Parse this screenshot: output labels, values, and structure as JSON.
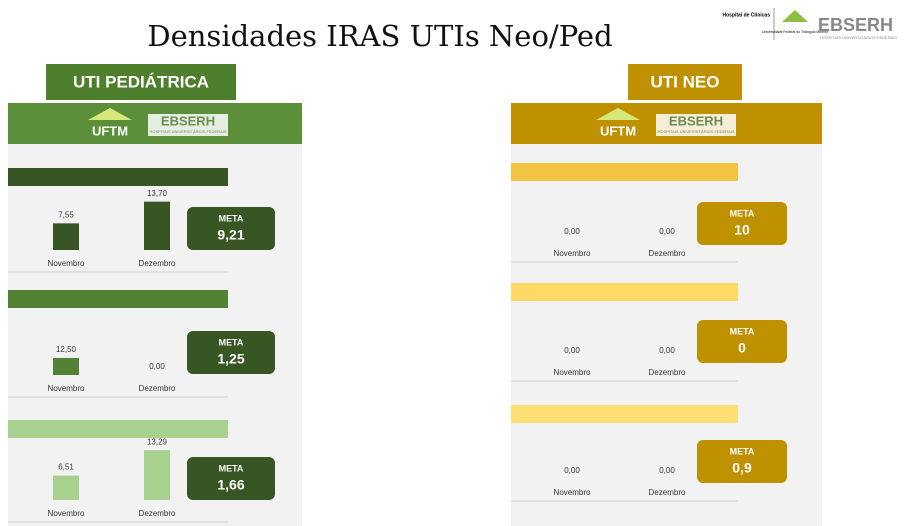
{
  "title": "Densidades IRAS UTIs Neo/Ped",
  "header_logo": {
    "hospital": "Hospital de Clínicas",
    "university": "Universidade Federal do Triângulo Mineiro",
    "brand": "EBSERH",
    "brand_sub": "HOSPITAIS UNIVERSITÁRIOS FEDERAIS"
  },
  "panels": [
    {
      "name": "UTI PEDIÁTRICA",
      "logo_left": "UFTM",
      "logo_right": "EBSERH",
      "logo_sub": "HOSPITAIS UNIVERSITÁRIOS FEDERAIS"
    },
    {
      "name": "UTI NEO",
      "logo_left": "UFTM",
      "logo_right": "EBSERH",
      "logo_sub": "HOSPITAIS UNIVERSITÁRIOS FEDERAIS"
    }
  ],
  "chart_data": [
    {
      "type": "bar",
      "categories": [
        "Novembro",
        "Dezembro"
      ],
      "values": [
        7.55,
        13.7
      ],
      "value_labels": [
        "7,55",
        "13,70"
      ],
      "color": "#375623",
      "ylim": [
        0,
        17
      ],
      "meta": "META",
      "meta_value": "9,21"
    },
    {
      "type": "bar",
      "categories": [
        "Novembro",
        "Dezembro"
      ],
      "values": [
        12.5,
        0
      ],
      "value_labels": [
        "12,50",
        "0,00"
      ],
      "color": "#548235",
      "ylim": [
        0,
        44
      ],
      "meta": "META",
      "meta_value": "1,25"
    },
    {
      "type": "bar",
      "categories": [
        "Novembro",
        "Dezembro"
      ],
      "values": [
        6.51,
        13.29
      ],
      "value_labels": [
        "6,51",
        "13,29"
      ],
      "color": "#a9d18e",
      "ylim": [
        0,
        16
      ],
      "meta": "META",
      "meta_value": "1,66"
    },
    {
      "type": "bar",
      "categories": [
        "Novembro",
        "Dezembro"
      ],
      "values": [
        0,
        0
      ],
      "value_labels": [
        "0,00",
        "0,00"
      ],
      "color": "#f5c342",
      "ylim": [
        0,
        1
      ],
      "meta": "META",
      "meta_value": "10"
    },
    {
      "type": "bar",
      "categories": [
        "Novembro",
        "Dezembro"
      ],
      "values": [
        0,
        0
      ],
      "value_labels": [
        "0,00",
        "0,00"
      ],
      "color": "#ffd966",
      "ylim": [
        0,
        1
      ],
      "meta": "META",
      "meta_value": "0"
    },
    {
      "type": "bar",
      "categories": [
        "Novembro",
        "Dezembro"
      ],
      "values": [
        0,
        0
      ],
      "value_labels": [
        "0,00",
        "0,00"
      ],
      "color": "#ffdf75",
      "ylim": [
        0,
        1
      ],
      "meta": "META",
      "meta_value": "0,9"
    }
  ]
}
